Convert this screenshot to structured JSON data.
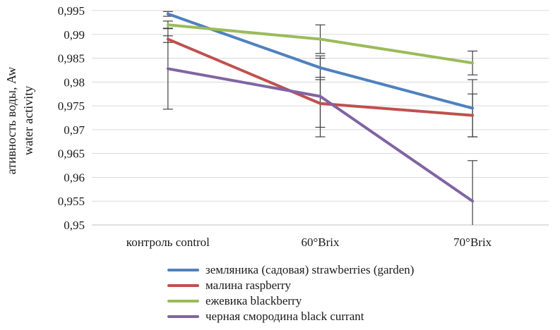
{
  "chart_data": {
    "type": "line",
    "title": "",
    "ylabel_line1": "ативность воды, Aw",
    "ylabel_line2": "water activity",
    "xlabel": "",
    "categories": [
      "контроль control",
      "60°Brix",
      "70°Brix"
    ],
    "series": [
      {
        "id": "strawberries-garden",
        "name": "земляника (садовая) strawberries (garden)",
        "color": "#4F81BD",
        "values": [
          0.9943,
          0.983,
          0.9745
        ],
        "errors": [
          0.0005,
          0.002,
          0.006
        ]
      },
      {
        "id": "raspberry",
        "name": "малина raspberry",
        "color": "#C0504D",
        "values": [
          0.989,
          0.9755,
          0.973
        ],
        "errors": [
          0.0007,
          0.005,
          0.0045
        ]
      },
      {
        "id": "blackberry",
        "name": "ежевика blackberry",
        "color": "#9BBB59",
        "values": [
          0.992,
          0.989,
          0.984
        ],
        "errors": [
          0.0008,
          0.003,
          0.0025
        ]
      },
      {
        "id": "black-currant",
        "name": "черная смородина black currant",
        "color": "#8064A2",
        "values": [
          0.9828,
          0.977,
          0.955
        ],
        "errors": [
          0.0085,
          0.0085,
          0.0085
        ]
      }
    ],
    "y_axis": {
      "min": 0.95,
      "max": 0.995,
      "step": 0.005,
      "tick_labels": [
        "0,995",
        "0,99",
        "0,985",
        "0,98",
        "0,975",
        "0,97",
        "0,965",
        "0,96",
        "0,955",
        "0,95"
      ]
    },
    "grid": true,
    "legend_position": "bottom",
    "colors": {
      "gridline": "#D9D9D9",
      "axis_line": "#BFBFBF",
      "error_bar": "#404040",
      "text": "#1a1a1a"
    }
  }
}
